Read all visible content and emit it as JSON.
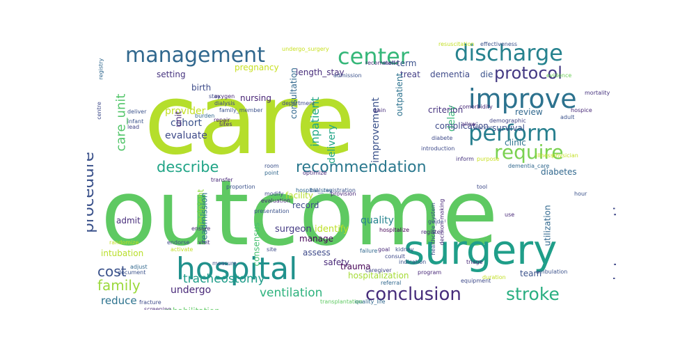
{
  "cloud": {
    "words": [
      {
        "text": "care",
        "color": "#b5de2b"
      },
      {
        "text": "outcome",
        "color": "#5ec962"
      },
      {
        "text": "surgery",
        "color": "#1f9e89"
      },
      {
        "text": "hospital",
        "color": "#21918c"
      },
      {
        "text": "management",
        "color": "#31688e"
      },
      {
        "text": "center",
        "color": "#35b779"
      },
      {
        "text": "discharge",
        "color": "#26828e"
      },
      {
        "text": "improve",
        "color": "#2c728e"
      },
      {
        "text": "perform",
        "color": "#277f8e"
      },
      {
        "text": "require",
        "color": "#7ad151"
      },
      {
        "text": "procedure",
        "color": "#3b528b"
      },
      {
        "text": "protocol",
        "color": "#443983"
      },
      {
        "text": "recommendation",
        "color": "#2a788e"
      },
      {
        "text": "describe",
        "color": "#20a486"
      },
      {
        "text": "conclusion",
        "color": "#472d7b"
      },
      {
        "text": "stroke",
        "color": "#28ae80"
      },
      {
        "text": "intervention",
        "color": "#3f4889"
      },
      {
        "text": "family",
        "color": "#9bd93c"
      },
      {
        "text": "cost",
        "color": "#3b528b"
      },
      {
        "text": "ventilation",
        "color": "#2db27d"
      },
      {
        "text": "care_unit",
        "color": "#52c569"
      },
      {
        "text": "inpatient",
        "color": "#22a785"
      },
      {
        "text": "tracheostomy",
        "color": "#1e9c89"
      },
      {
        "text": "cohort",
        "color": "#3b528b"
      },
      {
        "text": "evaluate",
        "color": "#3e4a89"
      },
      {
        "text": "provider",
        "color": "#c2df23"
      },
      {
        "text": "undergo",
        "color": "#482878"
      },
      {
        "text": "reduce",
        "color": "#2c728e"
      },
      {
        "text": "guideline",
        "color": "#3e4a89"
      },
      {
        "text": "delivery",
        "color": "#20a486"
      },
      {
        "text": "improvement",
        "color": "#3b528b"
      },
      {
        "text": "delay",
        "color": "#37b878"
      },
      {
        "text": "quality",
        "color": "#25838e"
      },
      {
        "text": "surgeon",
        "color": "#443a83"
      },
      {
        "text": "identify",
        "color": "#bddf26"
      },
      {
        "text": "record",
        "color": "#3e4c8a"
      },
      {
        "text": "manage",
        "color": "#440154"
      },
      {
        "text": "facility",
        "color": "#b5de2b"
      },
      {
        "text": "consensus",
        "color": "#46c06f"
      },
      {
        "text": "recipient",
        "color": "#95d840"
      },
      {
        "text": "nursing",
        "color": "#482475"
      },
      {
        "text": "review",
        "color": "#31688e"
      },
      {
        "text": "survival",
        "color": "#3b528b"
      },
      {
        "text": "clinic",
        "color": "#2c728e"
      },
      {
        "text": "diabetes",
        "color": "#31688e"
      },
      {
        "text": "dementia",
        "color": "#3e4a89"
      },
      {
        "text": "treat",
        "color": "#433e85"
      },
      {
        "text": "die",
        "color": "#3b528b"
      },
      {
        "text": "criterion",
        "color": "#46337f"
      },
      {
        "text": "complication",
        "color": "#3e4a89"
      },
      {
        "text": "consultation",
        "color": "#31688e"
      },
      {
        "text": "length_stay",
        "color": "#472d7b"
      },
      {
        "text": "unit",
        "color": "#482878"
      },
      {
        "text": "birth",
        "color": "#3e4c8a"
      },
      {
        "text": "setting",
        "color": "#46337f"
      },
      {
        "text": "pregnancy",
        "color": "#c8e020"
      },
      {
        "text": "term",
        "color": "#3b528b"
      },
      {
        "text": "outpatient",
        "color": "#2c728e"
      },
      {
        "text": "intubation",
        "color": "#b8de29"
      },
      {
        "text": "readmission",
        "color": "#2c728e"
      },
      {
        "text": "admit",
        "color": "#472d7b"
      },
      {
        "text": "rehabilitation",
        "color": "#5ec962"
      },
      {
        "text": "hospitalization",
        "color": "#a5db36"
      },
      {
        "text": "safety",
        "color": "#482878"
      },
      {
        "text": "assess",
        "color": "#3e4a89"
      },
      {
        "text": "trauma",
        "color": "#440154"
      },
      {
        "text": "team",
        "color": "#3b528b"
      },
      {
        "text": "utilization",
        "color": "#31688e"
      },
      {
        "text": "oxygen",
        "color": "#482878"
      },
      {
        "text": "dialysis",
        "color": "#3e4a89"
      },
      {
        "text": "burden",
        "color": "#31688e"
      },
      {
        "text": "repair",
        "color": "#481a6c"
      },
      {
        "text": "infant",
        "color": "#3b528b"
      },
      {
        "text": "lead",
        "color": "#414487"
      },
      {
        "text": "deliver",
        "color": "#3b528b"
      },
      {
        "text": "department",
        "color": "#3e4a89"
      },
      {
        "text": "pain",
        "color": "#472d7b"
      },
      {
        "text": "admission",
        "color": "#3b528b"
      },
      {
        "text": "recommend",
        "color": "#482878"
      },
      {
        "text": "staff",
        "color": "#3e4a89"
      },
      {
        "text": "resuscitation",
        "color": "#c2df23"
      },
      {
        "text": "effectiveness",
        "color": "#3b528b"
      },
      {
        "text": "evidence",
        "color": "#6ece58"
      },
      {
        "text": "mortality",
        "color": "#46337f"
      },
      {
        "text": "hospice",
        "color": "#482878"
      },
      {
        "text": "adult",
        "color": "#3b528b"
      },
      {
        "text": "diabete",
        "color": "#3e4a89"
      },
      {
        "text": "demographic",
        "color": "#414487"
      },
      {
        "text": "allow",
        "color": "#482878"
      },
      {
        "text": "worker",
        "color": "#3b528b"
      },
      {
        "text": "purpose",
        "color": "#c8e020"
      },
      {
        "text": "inform",
        "color": "#46337f"
      },
      {
        "text": "illness",
        "color": "#c2df23"
      },
      {
        "text": "guide",
        "color": "#3e4a89"
      },
      {
        "text": "register",
        "color": "#482878"
      },
      {
        "text": "kidney",
        "color": "#3b528b"
      },
      {
        "text": "hospitalize",
        "color": "#440154"
      },
      {
        "text": "consult",
        "color": "#3e4a89"
      },
      {
        "text": "failure",
        "color": "#31688e"
      },
      {
        "text": "goal",
        "color": "#482878"
      },
      {
        "text": "caregiver",
        "color": "#414487"
      },
      {
        "text": "referral",
        "color": "#31688e"
      },
      {
        "text": "indication",
        "color": "#3b528b"
      },
      {
        "text": "program",
        "color": "#482878"
      },
      {
        "text": "equipment",
        "color": "#3e4a89"
      },
      {
        "text": "duration",
        "color": "#c2df23"
      },
      {
        "text": "ambulation",
        "color": "#3b528b"
      },
      {
        "text": "triage",
        "color": "#482878"
      },
      {
        "text": "quality_life",
        "color": "#31688e"
      },
      {
        "text": "transplantation",
        "color": "#5ec962"
      },
      {
        "text": "fracture",
        "color": "#3e4a89"
      },
      {
        "text": "screening",
        "color": "#482878"
      },
      {
        "text": "document",
        "color": "#3b528b"
      },
      {
        "text": "adjust",
        "color": "#31688e"
      },
      {
        "text": "randomize",
        "color": "#c2df23"
      },
      {
        "text": "endorse",
        "color": "#3e4a89"
      },
      {
        "text": "transfer",
        "color": "#482878"
      },
      {
        "text": "room",
        "color": "#3b528b"
      },
      {
        "text": "point",
        "color": "#31688e"
      },
      {
        "text": "optimize",
        "color": "#482878"
      },
      {
        "text": "modify",
        "color": "#3e4a89"
      },
      {
        "text": "presentation",
        "color": "#3b528b"
      },
      {
        "text": "ensure",
        "color": "#482878"
      },
      {
        "text": "registry",
        "color": "#31688e"
      },
      {
        "text": "centre",
        "color": "#3e4a89"
      },
      {
        "text": "healthcare_system",
        "color": "#3b528b"
      },
      {
        "text": "decision_making",
        "color": "#482878"
      },
      {
        "text": "trial_registration",
        "color": "#3b528b"
      },
      {
        "text": "hospital_stay",
        "color": "#31688e"
      },
      {
        "text": "provision",
        "color": "#482878"
      },
      {
        "text": "introduction",
        "color": "#3e4a89"
      },
      {
        "text": "undergo_surgery",
        "color": "#c8e020"
      },
      {
        "text": "family_member",
        "color": "#3b528b"
      },
      {
        "text": "comorbidity",
        "color": "#482878"
      },
      {
        "text": "physician",
        "color": "#c2df23"
      },
      {
        "text": "site",
        "color": "#3e4a89"
      },
      {
        "text": "visit",
        "color": "#482878"
      },
      {
        "text": "activate",
        "color": "#c2df23"
      },
      {
        "text": "measure",
        "color": "#3b528b"
      },
      {
        "text": "stay",
        "color": "#3e4a89"
      },
      {
        "text": "sites",
        "color": "#482878"
      },
      {
        "text": "dementia_care",
        "color": "#31688e"
      },
      {
        "text": "proportion",
        "color": "#3b528b"
      },
      {
        "text": "evaluation",
        "color": "#482878"
      },
      {
        "text": "tool",
        "color": "#3e4a89"
      },
      {
        "text": "hour",
        "color": "#3b528b"
      },
      {
        "text": "use",
        "color": "#482878"
      }
    ]
  }
}
